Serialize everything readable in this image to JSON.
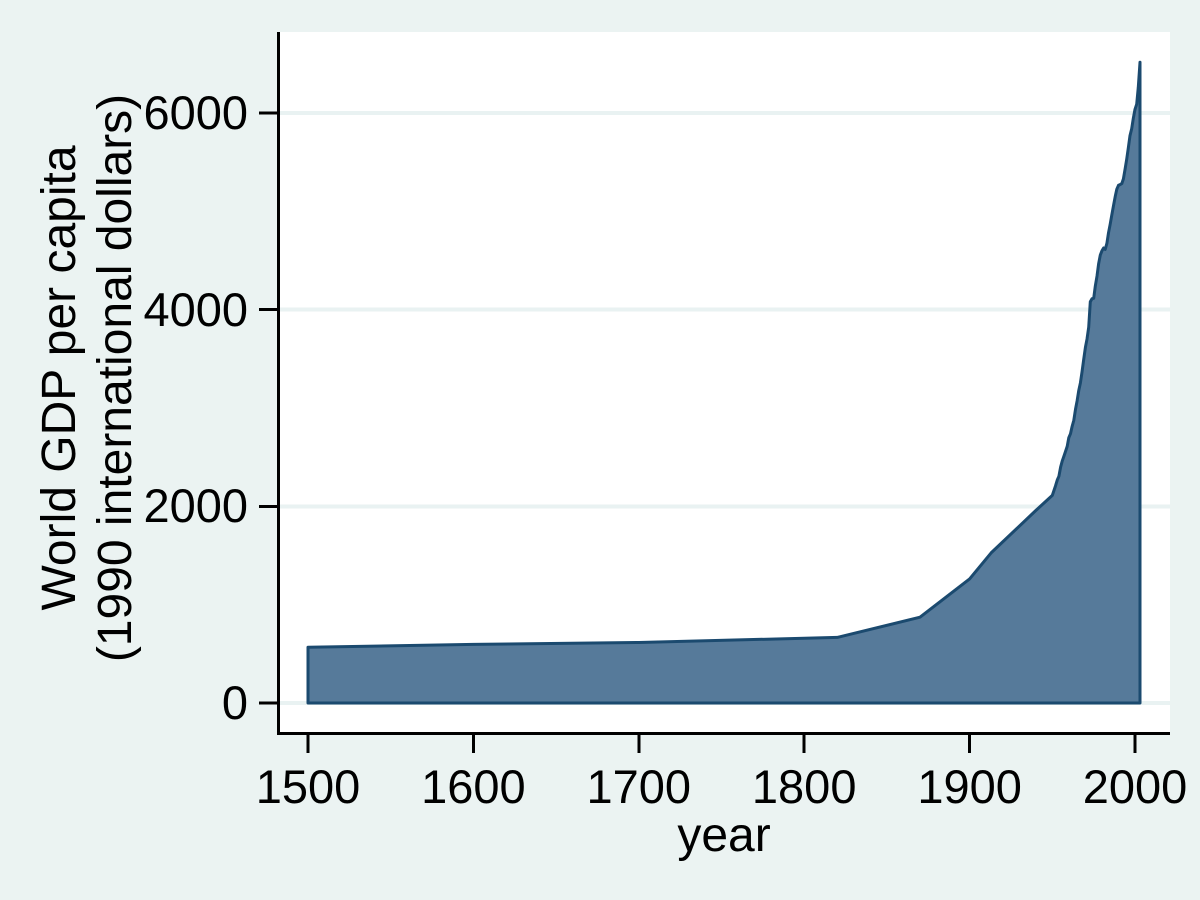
{
  "chart_data": {
    "type": "area",
    "title": "",
    "xlabel": "year",
    "ylabel_lines": [
      "World GDP per capita",
      "(1990 international dollars)"
    ],
    "x_ticks": [
      1500,
      1600,
      1700,
      1800,
      1900,
      2000
    ],
    "y_ticks": [
      0,
      2000,
      4000,
      6000
    ],
    "xlim": [
      1483,
      2021
    ],
    "ylim": [
      -300,
      6820
    ],
    "grid": "horizontal",
    "legend": "none",
    "series": [
      {
        "name": "World GDP per capita (1990 international dollars)",
        "points": [
          [
            1500,
            566
          ],
          [
            1600,
            596
          ],
          [
            1700,
            615
          ],
          [
            1820,
            667
          ],
          [
            1870,
            873
          ],
          [
            1900,
            1262
          ],
          [
            1913,
            1526
          ],
          [
            1940,
            1958
          ],
          [
            1950,
            2111
          ],
          [
            1951,
            2162
          ],
          [
            1952,
            2211
          ],
          [
            1953,
            2269
          ],
          [
            1954,
            2305
          ],
          [
            1955,
            2399
          ],
          [
            1956,
            2460
          ],
          [
            1957,
            2509
          ],
          [
            1958,
            2558
          ],
          [
            1959,
            2610
          ],
          [
            1960,
            2698
          ],
          [
            1961,
            2739
          ],
          [
            1962,
            2812
          ],
          [
            1963,
            2874
          ],
          [
            1964,
            2987
          ],
          [
            1965,
            3072
          ],
          [
            1966,
            3180
          ],
          [
            1967,
            3255
          ],
          [
            1968,
            3372
          ],
          [
            1969,
            3493
          ],
          [
            1970,
            3616
          ],
          [
            1971,
            3701
          ],
          [
            1972,
            3822
          ],
          [
            1973,
            4081
          ],
          [
            1974,
            4112
          ],
          [
            1975,
            4116
          ],
          [
            1976,
            4240
          ],
          [
            1977,
            4341
          ],
          [
            1978,
            4465
          ],
          [
            1979,
            4556
          ],
          [
            1980,
            4598
          ],
          [
            1981,
            4627
          ],
          [
            1982,
            4613
          ],
          [
            1983,
            4675
          ],
          [
            1984,
            4781
          ],
          [
            1985,
            4870
          ],
          [
            1986,
            4963
          ],
          [
            1987,
            5057
          ],
          [
            1988,
            5150
          ],
          [
            1989,
            5225
          ],
          [
            1990,
            5265
          ],
          [
            1991,
            5272
          ],
          [
            1992,
            5282
          ],
          [
            1993,
            5330
          ],
          [
            1994,
            5430
          ],
          [
            1995,
            5530
          ],
          [
            1996,
            5650
          ],
          [
            1997,
            5770
          ],
          [
            1998,
            5840
          ],
          [
            1999,
            5945
          ],
          [
            2000,
            6038
          ],
          [
            2001,
            6089
          ],
          [
            2002,
            6262
          ],
          [
            2003,
            6516
          ]
        ]
      }
    ],
    "colors": {
      "background": "#ebf3f2",
      "plot_background": "#ffffff",
      "gridline": "#e9f2f2",
      "area_fill": "#567a9a",
      "area_stroke": "#1b4a6f",
      "axis": "#000000",
      "text": "#000000"
    }
  }
}
